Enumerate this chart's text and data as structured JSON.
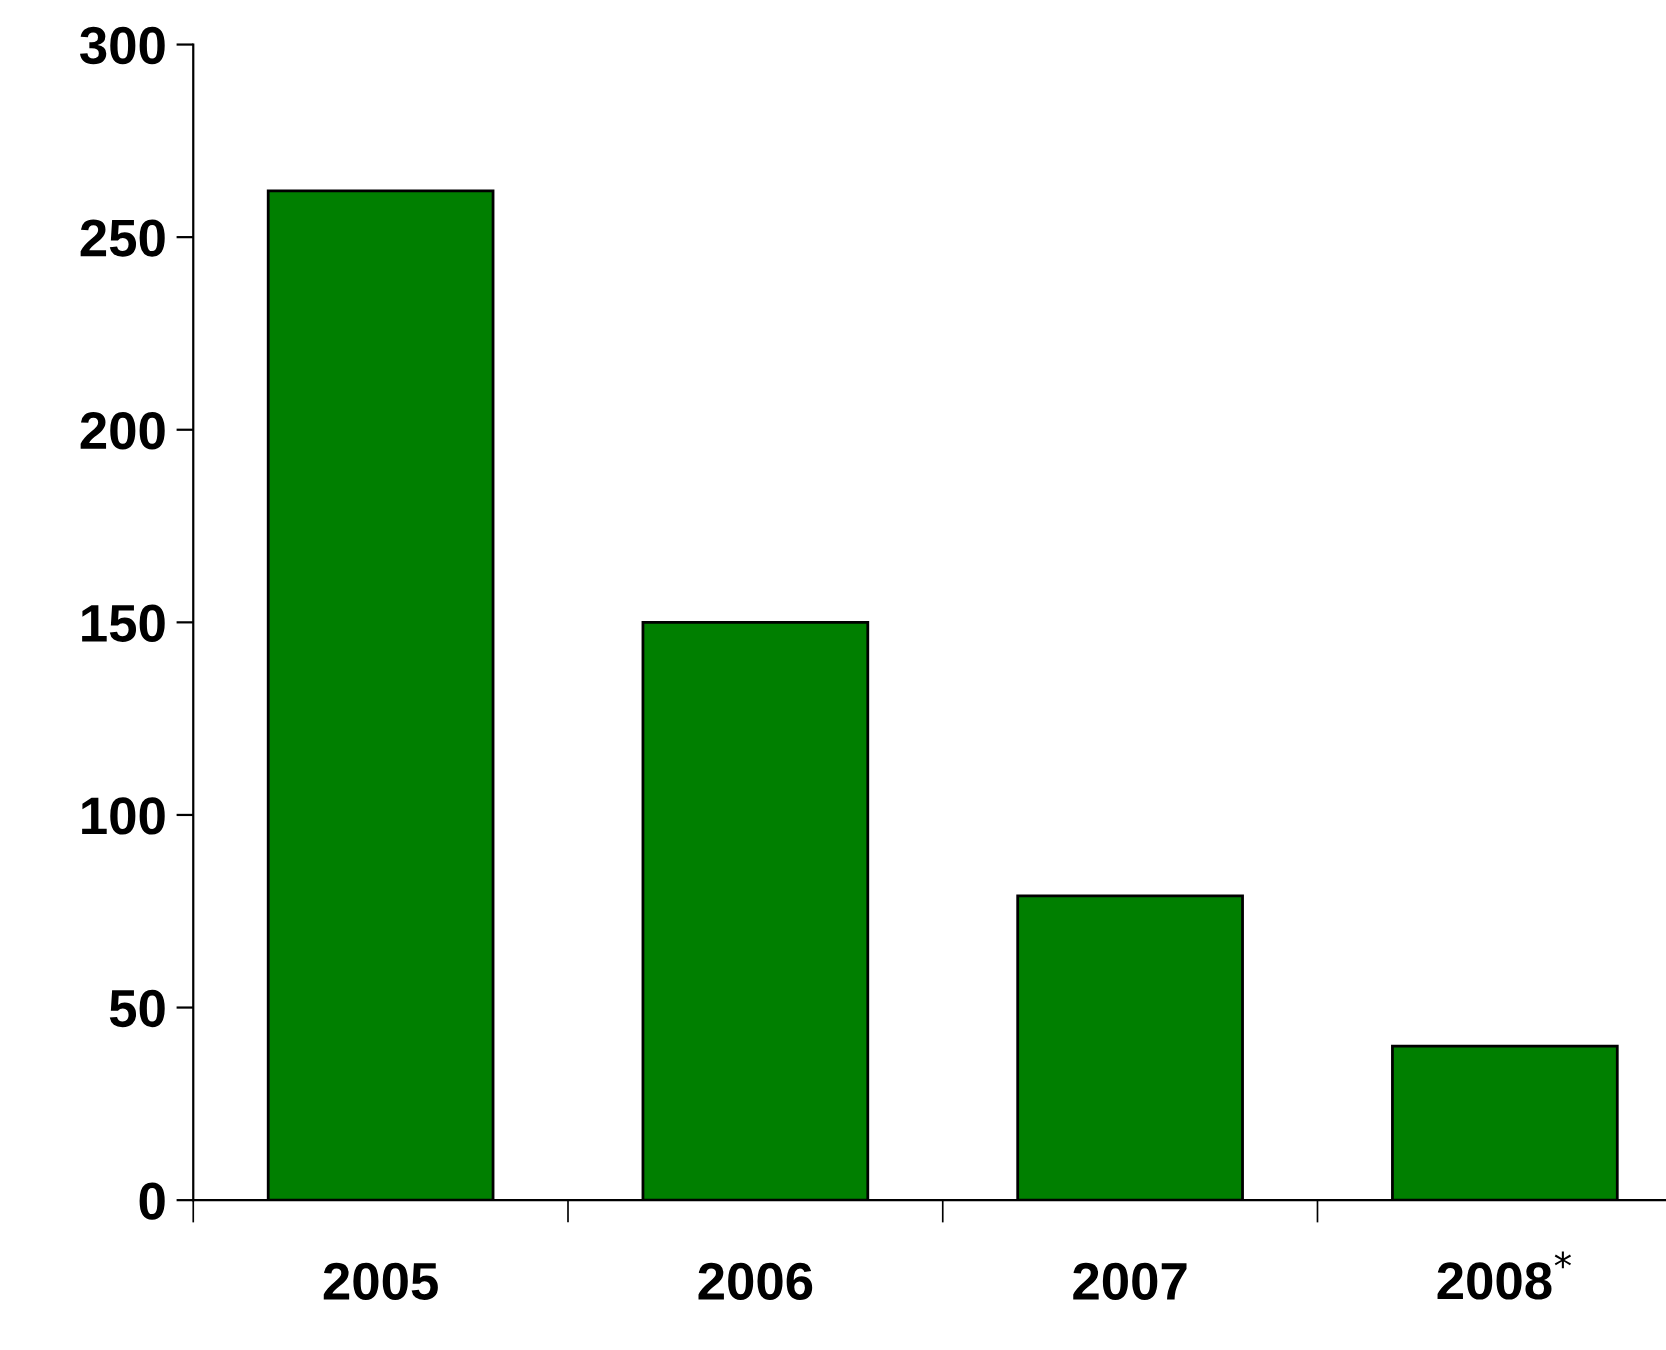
{
  "chart_data": {
    "type": "bar",
    "categories": [
      "2005",
      "2006",
      "2007",
      "2008$^{*}$"
    ],
    "values": [
      262,
      150,
      79,
      40
    ],
    "color": "#007f00",
    "ylim": [
      0,
      300
    ],
    "yticks": [
      0,
      50,
      100,
      150,
      200,
      250,
      300
    ],
    "grid": false,
    "legend": false
  }
}
